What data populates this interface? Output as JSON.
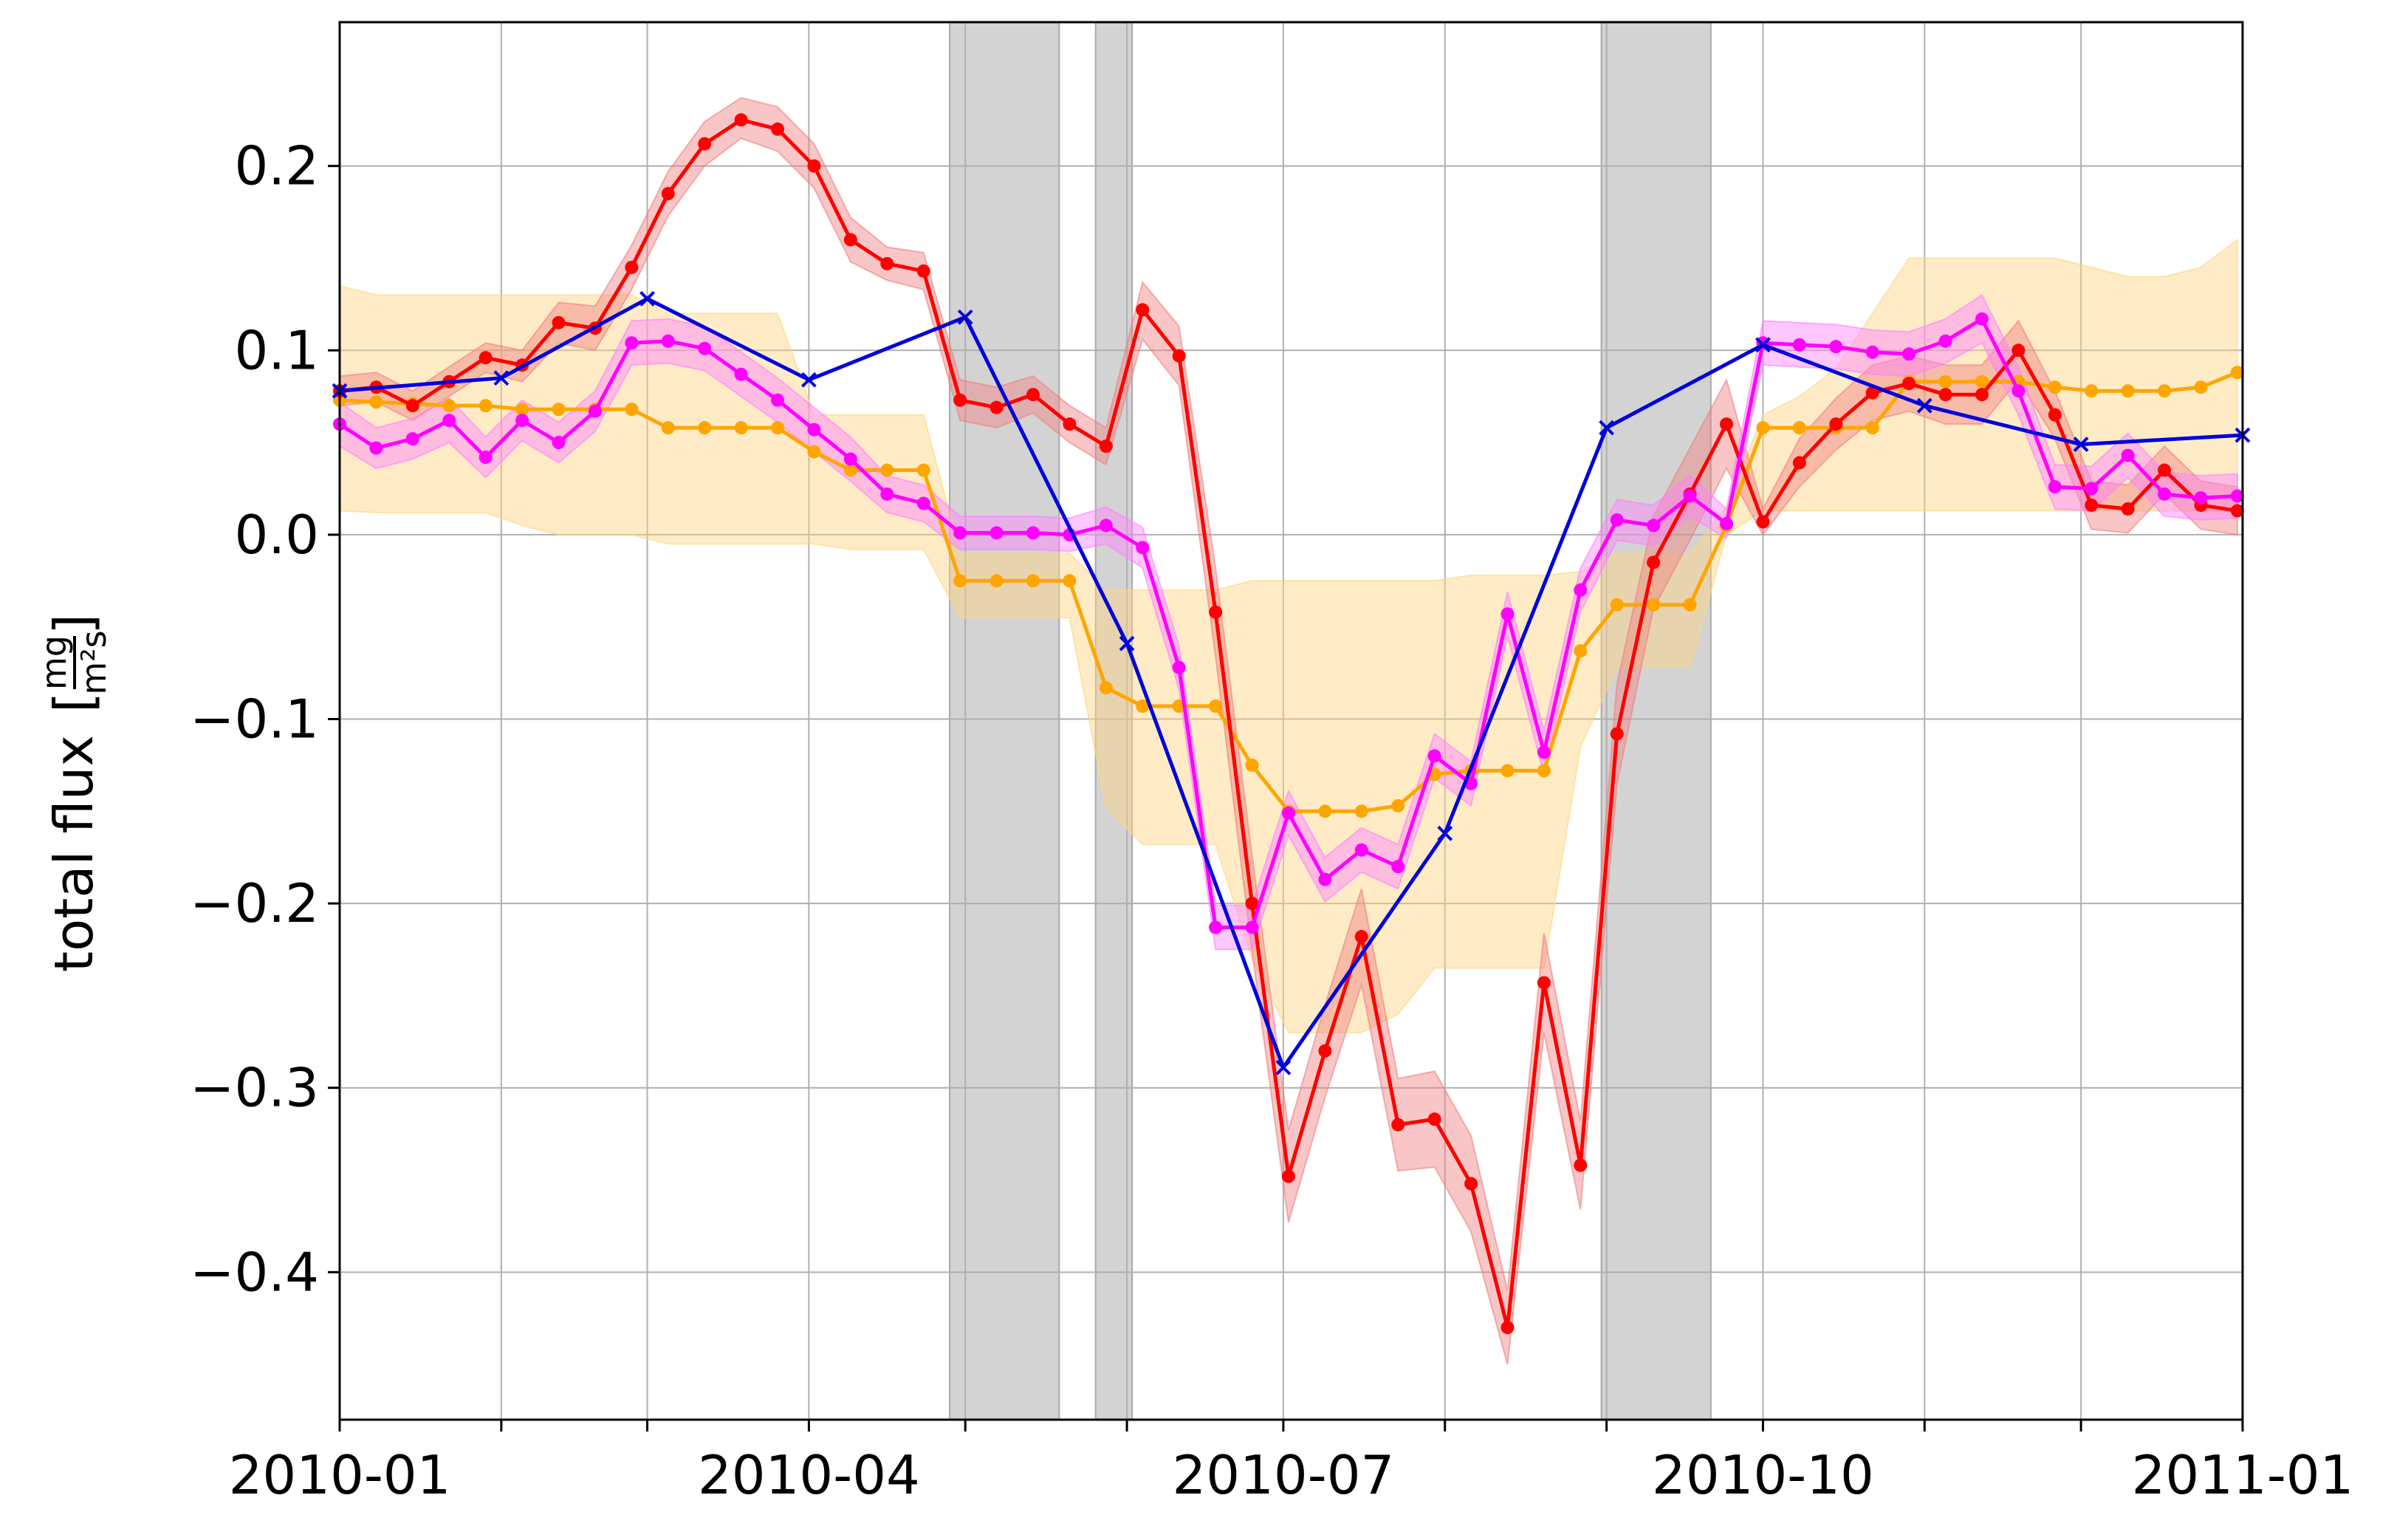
{
  "chart_data": {
    "type": "line",
    "ylabel": "total flux",
    "ylabel_unit_num": "mg",
    "ylabel_unit_den": "m²s",
    "ylim": [
      -0.48,
      0.278
    ],
    "xlim": [
      "2010-01-01",
      "2011-01-01"
    ],
    "xticks": [
      "2010-01-01",
      "2010-02-01",
      "2010-03-01",
      "2010-04-01",
      "2010-05-01",
      "2010-06-01",
      "2010-07-01",
      "2010-08-01",
      "2010-09-01",
      "2010-10-01",
      "2010-11-01",
      "2010-12-01",
      "2011-01-01"
    ],
    "xtick_labels": [
      "2010-01",
      "",
      "",
      "2010-04",
      "",
      "",
      "2010-07",
      "",
      "",
      "2010-10",
      "",
      "",
      "2011-01"
    ],
    "yticks": [
      -0.4,
      -0.3,
      -0.2,
      -0.1,
      0.0,
      0.1,
      0.2
    ],
    "ytick_labels": [
      "−0.4",
      "−0.3",
      "−0.2",
      "−0.1",
      "0.0",
      "0.1",
      "0.2"
    ],
    "grid": true,
    "gaps": [
      [
        "2010-04-28",
        "2010-05-19"
      ],
      [
        "2010-05-26",
        "2010-06-02"
      ],
      [
        "2010-08-31",
        "2010-09-21"
      ]
    ],
    "series": [
      {
        "color": "#ffa500",
        "band_color": "#ffd580",
        "marker": "dot",
        "x": [
          "2010-01-01",
          "2010-01-08",
          "2010-01-15",
          "2010-01-22",
          "2010-01-29",
          "2010-02-05",
          "2010-02-12",
          "2010-02-19",
          "2010-02-26",
          "2010-03-05",
          "2010-03-12",
          "2010-03-19",
          "2010-03-26",
          "2010-04-02",
          "2010-04-09",
          "2010-04-16",
          "2010-04-23",
          "2010-04-30",
          "2010-05-07",
          "2010-05-14",
          "2010-05-21",
          "2010-05-28",
          "2010-06-04",
          "2010-06-11",
          "2010-06-18",
          "2010-06-25",
          "2010-07-02",
          "2010-07-09",
          "2010-07-16",
          "2010-07-23",
          "2010-07-30",
          "2010-08-06",
          "2010-08-13",
          "2010-08-20",
          "2010-08-27",
          "2010-09-03",
          "2010-09-10",
          "2010-09-17",
          "2010-09-24",
          "2010-10-01",
          "2010-10-08",
          "2010-10-15",
          "2010-10-22",
          "2010-10-29",
          "2010-11-05",
          "2010-11-12",
          "2010-11-19",
          "2010-11-26",
          "2010-12-03",
          "2010-12-10",
          "2010-12-17",
          "2010-12-24",
          "2010-12-31"
        ],
        "y": [
          0.073,
          0.072,
          0.071,
          0.07,
          0.07,
          0.068,
          0.068,
          0.068,
          0.068,
          0.058,
          0.058,
          0.058,
          0.058,
          0.045,
          0.035,
          0.035,
          0.035,
          -0.025,
          -0.025,
          -0.025,
          -0.025,
          -0.083,
          -0.093,
          -0.093,
          -0.093,
          -0.125,
          -0.15,
          -0.15,
          -0.15,
          -0.147,
          -0.13,
          -0.128,
          -0.128,
          -0.128,
          -0.063,
          -0.038,
          -0.038,
          -0.038,
          0.005,
          0.058,
          0.058,
          0.058,
          0.058,
          0.083,
          0.083,
          0.083,
          0.083,
          0.08,
          0.078,
          0.078,
          0.078,
          0.08,
          0.088
        ],
        "lo": [
          0.013,
          0.012,
          0.012,
          0.012,
          0.012,
          0.005,
          0.0,
          0.0,
          0.0,
          -0.005,
          -0.005,
          -0.005,
          -0.005,
          -0.005,
          -0.008,
          -0.008,
          -0.008,
          -0.045,
          -0.045,
          -0.045,
          -0.045,
          -0.148,
          -0.168,
          -0.168,
          -0.168,
          -0.23,
          -0.27,
          -0.27,
          -0.27,
          -0.26,
          -0.235,
          -0.235,
          -0.235,
          -0.235,
          -0.115,
          -0.072,
          -0.072,
          -0.072,
          0.0,
          0.013,
          0.013,
          0.013,
          0.013,
          0.013,
          0.013,
          0.013,
          0.013,
          0.013,
          0.013,
          0.013,
          0.013,
          0.013,
          0.013
        ],
        "hi": [
          0.135,
          0.13,
          0.13,
          0.13,
          0.13,
          0.13,
          0.13,
          0.13,
          0.13,
          0.12,
          0.12,
          0.12,
          0.12,
          0.065,
          0.065,
          0.065,
          0.065,
          -0.01,
          -0.01,
          -0.01,
          -0.01,
          -0.03,
          -0.03,
          -0.03,
          -0.03,
          -0.025,
          -0.025,
          -0.025,
          -0.025,
          -0.025,
          -0.025,
          -0.022,
          -0.022,
          -0.022,
          -0.02,
          -0.01,
          -0.01,
          -0.01,
          0.015,
          0.065,
          0.075,
          0.09,
          0.12,
          0.15,
          0.15,
          0.15,
          0.15,
          0.15,
          0.145,
          0.14,
          0.14,
          0.145,
          0.16
        ]
      },
      {
        "color": "#ff0000",
        "band_color": "#f08080",
        "marker": "dot",
        "x": [
          "2010-01-01",
          "2010-01-08",
          "2010-01-15",
          "2010-01-22",
          "2010-01-29",
          "2010-02-05",
          "2010-02-12",
          "2010-02-19",
          "2010-02-26",
          "2010-03-05",
          "2010-03-12",
          "2010-03-19",
          "2010-03-26",
          "2010-04-02",
          "2010-04-09",
          "2010-04-16",
          "2010-04-23",
          "2010-04-30",
          "2010-05-07",
          "2010-05-14",
          "2010-05-21",
          "2010-05-28",
          "2010-06-04",
          "2010-06-11",
          "2010-06-18",
          "2010-06-25",
          "2010-07-02",
          "2010-07-09",
          "2010-07-16",
          "2010-07-23",
          "2010-07-30",
          "2010-08-06",
          "2010-08-13",
          "2010-08-20",
          "2010-08-27",
          "2010-09-03",
          "2010-09-10",
          "2010-09-17",
          "2010-09-24",
          "2010-10-01",
          "2010-10-08",
          "2010-10-15",
          "2010-10-22",
          "2010-10-29",
          "2010-11-05",
          "2010-11-12",
          "2010-11-19",
          "2010-11-26",
          "2010-12-03",
          "2010-12-10",
          "2010-12-17",
          "2010-12-24",
          "2010-12-31"
        ],
        "y": [
          0.078,
          0.08,
          0.07,
          0.083,
          0.096,
          0.092,
          0.115,
          0.112,
          0.145,
          0.185,
          0.212,
          0.225,
          0.22,
          0.2,
          0.16,
          0.147,
          0.143,
          0.073,
          0.069,
          0.076,
          0.06,
          0.048,
          0.122,
          0.097,
          -0.042,
          -0.2,
          -0.348,
          -0.28,
          -0.218,
          -0.32,
          -0.317,
          -0.352,
          -0.43,
          -0.243,
          -0.342,
          -0.108,
          -0.015,
          0.022,
          0.06,
          0.007,
          0.039,
          0.06,
          0.077,
          0.082,
          0.076,
          0.076,
          0.1,
          0.065,
          0.016,
          0.014,
          0.035,
          0.016,
          0.013
        ],
        "lo": [
          0.07,
          0.072,
          0.062,
          0.075,
          0.088,
          0.083,
          0.104,
          0.1,
          0.133,
          0.173,
          0.2,
          0.215,
          0.208,
          0.188,
          0.148,
          0.138,
          0.133,
          0.062,
          0.058,
          0.066,
          0.05,
          0.038,
          0.106,
          0.081,
          -0.066,
          -0.226,
          -0.373,
          -0.305,
          -0.244,
          -0.345,
          -0.343,
          -0.378,
          -0.45,
          -0.27,
          -0.366,
          -0.135,
          -0.04,
          -0.003,
          0.036,
          0.0,
          0.026,
          0.046,
          0.062,
          0.067,
          0.06,
          0.06,
          0.084,
          0.052,
          0.003,
          0.001,
          0.022,
          0.003,
          0.0
        ],
        "hi": [
          0.086,
          0.088,
          0.078,
          0.091,
          0.104,
          0.1,
          0.126,
          0.124,
          0.157,
          0.197,
          0.224,
          0.237,
          0.232,
          0.212,
          0.172,
          0.156,
          0.153,
          0.084,
          0.08,
          0.086,
          0.07,
          0.058,
          0.137,
          0.113,
          -0.018,
          -0.174,
          -0.323,
          -0.255,
          -0.192,
          -0.295,
          -0.291,
          -0.326,
          -0.41,
          -0.216,
          -0.318,
          -0.081,
          0.01,
          0.047,
          0.084,
          0.014,
          0.052,
          0.074,
          0.092,
          0.097,
          0.092,
          0.092,
          0.116,
          0.078,
          0.029,
          0.027,
          0.048,
          0.029,
          0.026
        ]
      },
      {
        "color": "#ff00ff",
        "band_color": "#ff80ff",
        "marker": "dot",
        "x": [
          "2010-01-01",
          "2010-01-08",
          "2010-01-15",
          "2010-01-22",
          "2010-01-29",
          "2010-02-05",
          "2010-02-12",
          "2010-02-19",
          "2010-02-26",
          "2010-03-05",
          "2010-03-12",
          "2010-03-19",
          "2010-03-26",
          "2010-04-02",
          "2010-04-09",
          "2010-04-16",
          "2010-04-23",
          "2010-04-30",
          "2010-05-07",
          "2010-05-14",
          "2010-05-21",
          "2010-05-28",
          "2010-06-04",
          "2010-06-11",
          "2010-06-18",
          "2010-06-25",
          "2010-07-02",
          "2010-07-09",
          "2010-07-16",
          "2010-07-23",
          "2010-07-30",
          "2010-08-06",
          "2010-08-13",
          "2010-08-20",
          "2010-08-27",
          "2010-09-03",
          "2010-09-10",
          "2010-09-17",
          "2010-09-24",
          "2010-10-01",
          "2010-10-08",
          "2010-10-15",
          "2010-10-22",
          "2010-10-29",
          "2010-11-05",
          "2010-11-12",
          "2010-11-19",
          "2010-11-26",
          "2010-12-03",
          "2010-12-10",
          "2010-12-17",
          "2010-12-24",
          "2010-12-31"
        ],
        "y": [
          0.06,
          0.047,
          0.052,
          0.062,
          0.042,
          0.062,
          0.05,
          0.067,
          0.104,
          0.105,
          0.101,
          0.087,
          0.073,
          0.057,
          0.041,
          0.022,
          0.017,
          0.001,
          0.001,
          0.001,
          0.0,
          0.005,
          -0.007,
          -0.072,
          -0.213,
          -0.213,
          -0.151,
          -0.187,
          -0.171,
          -0.18,
          -0.12,
          -0.135,
          -0.043,
          -0.118,
          -0.03,
          0.008,
          0.005,
          0.021,
          0.006,
          0.104,
          0.103,
          0.102,
          0.099,
          0.098,
          0.105,
          0.117,
          0.078,
          0.026,
          0.025,
          0.043,
          0.022,
          0.02,
          0.021
        ],
        "lo": [
          0.048,
          0.036,
          0.041,
          0.05,
          0.031,
          0.051,
          0.039,
          0.056,
          0.092,
          0.093,
          0.089,
          0.075,
          0.061,
          0.045,
          0.029,
          0.012,
          0.007,
          -0.008,
          -0.008,
          -0.008,
          -0.009,
          -0.005,
          -0.018,
          -0.084,
          -0.225,
          -0.225,
          -0.163,
          -0.199,
          -0.183,
          -0.192,
          -0.132,
          -0.147,
          -0.055,
          -0.13,
          -0.042,
          -0.003,
          -0.006,
          0.01,
          -0.002,
          0.092,
          0.091,
          0.09,
          0.087,
          0.086,
          0.093,
          0.104,
          0.065,
          0.014,
          0.013,
          0.031,
          0.01,
          0.008,
          0.009
        ],
        "hi": [
          0.072,
          0.058,
          0.063,
          0.074,
          0.053,
          0.073,
          0.061,
          0.078,
          0.116,
          0.117,
          0.113,
          0.099,
          0.085,
          0.069,
          0.053,
          0.032,
          0.027,
          0.01,
          0.01,
          0.01,
          0.009,
          0.015,
          0.004,
          -0.06,
          -0.201,
          -0.201,
          -0.139,
          -0.175,
          -0.159,
          -0.168,
          -0.108,
          -0.123,
          -0.031,
          -0.106,
          -0.018,
          0.019,
          0.016,
          0.032,
          0.014,
          0.116,
          0.115,
          0.114,
          0.111,
          0.11,
          0.117,
          0.13,
          0.091,
          0.038,
          0.037,
          0.055,
          0.034,
          0.032,
          0.033
        ]
      },
      {
        "color": "#0000dd",
        "marker": "x",
        "x": [
          "2010-01-01",
          "2010-02-01",
          "2010-03-01",
          "2010-04-01",
          "2010-05-01",
          "2010-06-01",
          "2010-07-01",
          "2010-08-01",
          "2010-09-01",
          "2010-10-01",
          "2010-11-01",
          "2010-12-01",
          "2011-01-01"
        ],
        "y": [
          0.078,
          0.085,
          0.128,
          0.084,
          0.118,
          -0.059,
          -0.289,
          -0.162,
          0.058,
          0.103,
          0.07,
          0.049,
          0.054
        ]
      }
    ]
  }
}
